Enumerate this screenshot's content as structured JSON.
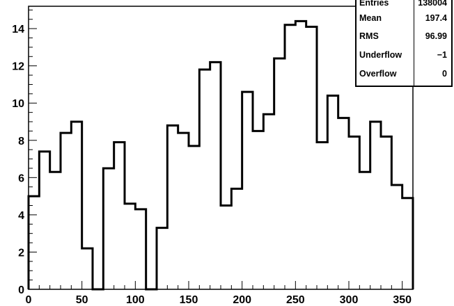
{
  "chart_data": {
    "type": "histogram",
    "title": "",
    "xlabel": "",
    "ylabel": "",
    "xlim": [
      0,
      360
    ],
    "ylim": [
      0,
      15.2
    ],
    "bin_width": 10,
    "bin_edges_start": 0,
    "values": [
      5.0,
      7.4,
      6.3,
      8.4,
      9.0,
      2.2,
      0.0,
      6.5,
      7.9,
      4.6,
      4.3,
      0.0,
      3.3,
      8.8,
      8.4,
      7.7,
      11.8,
      12.2,
      4.5,
      5.4,
      10.6,
      8.5,
      9.4,
      12.4,
      14.2,
      14.4,
      14.1,
      7.9,
      10.4,
      9.2,
      8.2,
      6.3,
      9.0,
      8.2,
      5.6,
      4.9
    ],
    "x_ticks": [
      "0",
      "50",
      "100",
      "150",
      "200",
      "250",
      "300",
      "350"
    ],
    "x_tick_values": [
      0,
      50,
      100,
      150,
      200,
      250,
      300,
      350
    ],
    "y_ticks": [
      "0",
      "2",
      "4",
      "6",
      "8",
      "10",
      "12",
      "14"
    ],
    "y_tick_values": [
      0,
      2,
      4,
      6,
      8,
      10,
      12,
      14
    ],
    "line_color": "#000000",
    "grid": false
  },
  "stats": {
    "rows": [
      {
        "key": "Entries",
        "value": "138004"
      },
      {
        "key": "Mean",
        "value": "197.4"
      },
      {
        "key": "RMS",
        "value": "96.99"
      },
      {
        "key": "Underflow",
        "value": "−1"
      },
      {
        "key": "Overflow",
        "value": "0"
      }
    ]
  }
}
